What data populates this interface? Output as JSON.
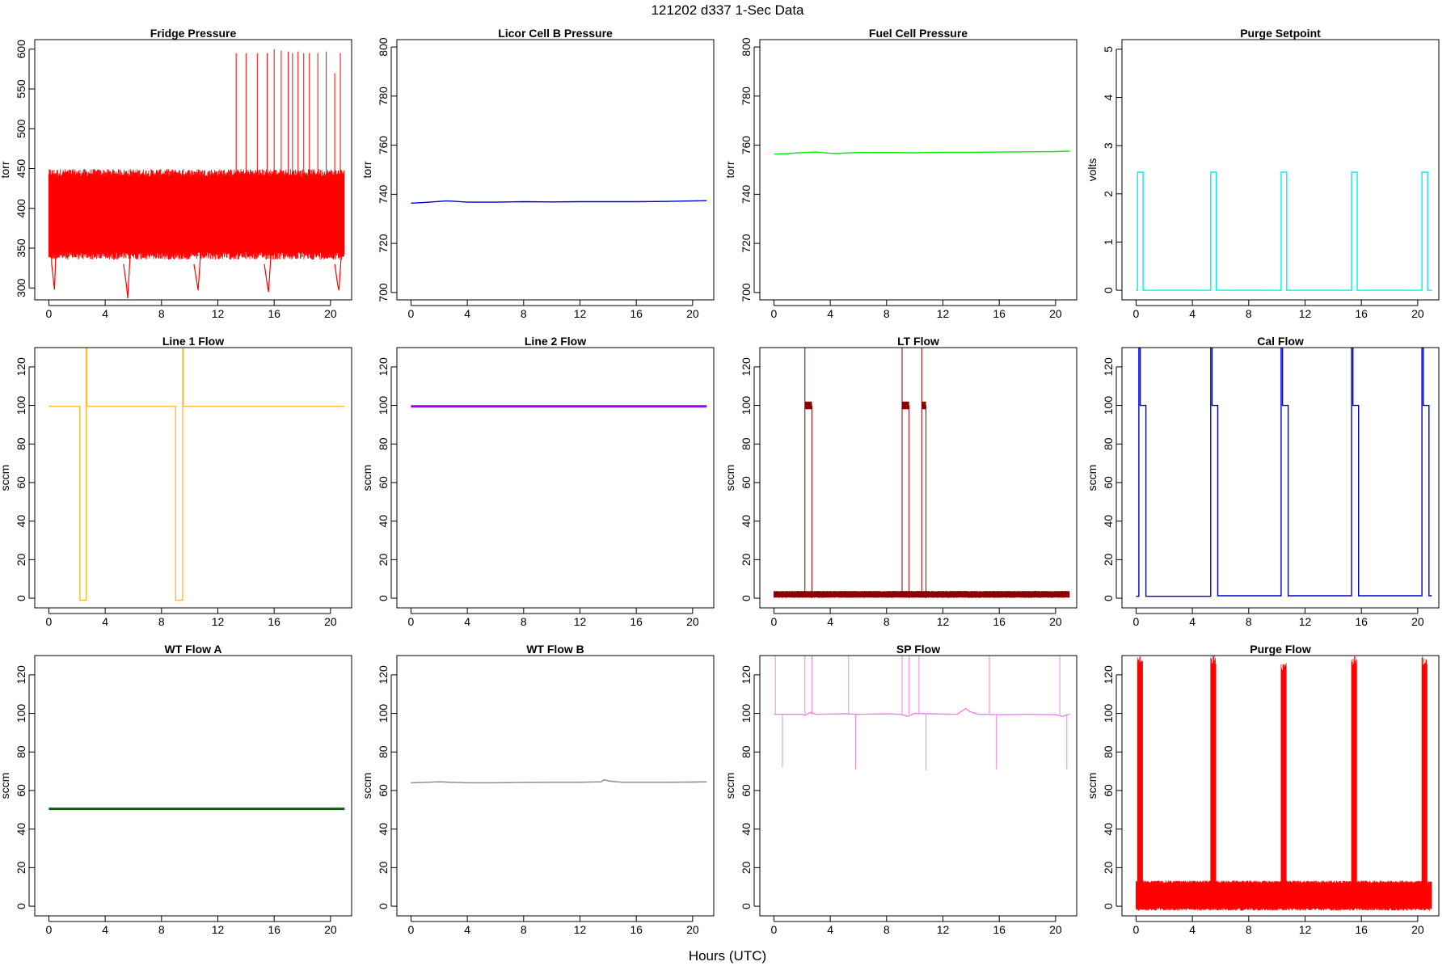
{
  "figure": {
    "title": "121202   d337   1-Sec Data",
    "xlabel": "Hours (UTC)"
  },
  "chart_data": [
    {
      "type": "line",
      "title": "Fridge Pressure",
      "ylabel": "torr",
      "color": "#ff0000",
      "xlim": [
        -1,
        21.5
      ],
      "ylim": [
        285,
        612
      ],
      "xticks": [
        0,
        4,
        8,
        12,
        16,
        20
      ],
      "yticks": [
        300,
        350,
        400,
        450,
        500,
        550,
        600
      ],
      "series": [
        {
          "band": {
            "x_range": [
              0,
              21
            ],
            "lower": 345,
            "upper": 440
          },
          "segments": [
            {
              "x": [
                0.1,
                0.2,
                0.4,
                0.6
              ],
              "y": [
                440,
                330,
                298,
                395
              ]
            },
            {
              "x": [
                5.3,
                5.5,
                5.6,
                5.8
              ],
              "y": [
                330,
                305,
                287,
                350
              ]
            },
            {
              "x": [
                10.3,
                10.5,
                10.6,
                10.8
              ],
              "y": [
                330,
                308,
                297,
                350
              ]
            },
            {
              "x": [
                15.3,
                15.5,
                15.6,
                15.8
              ],
              "y": [
                330,
                305,
                295,
                350
              ]
            },
            {
              "x": [
                20.3,
                20.5,
                20.6,
                20.8
              ],
              "y": [
                330,
                305,
                297,
                350
              ]
            }
          ],
          "spikes": [
            {
              "x": 13.3,
              "y": 595
            },
            {
              "x": 14.0,
              "y": 595
            },
            {
              "x": 14.8,
              "y": 595
            },
            {
              "x": 15.5,
              "y": 595
            },
            {
              "x": 16.0,
              "y": 600
            },
            {
              "x": 16.5,
              "y": 598
            },
            {
              "x": 17.0,
              "y": 597
            },
            {
              "x": 17.3,
              "y": 595
            },
            {
              "x": 17.7,
              "y": 597
            },
            {
              "x": 18.1,
              "y": 595
            },
            {
              "x": 18.5,
              "y": 595
            },
            {
              "x": 19.1,
              "y": 595
            },
            {
              "x": 19.7,
              "y": 597
            },
            {
              "x": 20.3,
              "y": 570
            },
            {
              "x": 20.7,
              "y": 595
            }
          ]
        }
      ]
    },
    {
      "type": "line",
      "title": "Licor Cell B Pressure",
      "ylabel": "torr",
      "color": "#0000cc",
      "xlim": [
        -1,
        21.5
      ],
      "ylim": [
        697,
        803
      ],
      "xticks": [
        0,
        4,
        8,
        12,
        16,
        20
      ],
      "yticks": [
        700,
        720,
        740,
        760,
        780,
        800
      ],
      "series": [
        {
          "x": [
            0,
            1,
            2,
            2.5,
            3,
            4,
            6,
            8,
            10,
            12,
            14,
            16,
            18,
            20,
            21
          ],
          "y": [
            736.4,
            736.7,
            737.1,
            737.3,
            737.2,
            736.8,
            736.8,
            737.0,
            736.9,
            737.0,
            737.0,
            737.0,
            737.1,
            737.3,
            737.4
          ]
        }
      ]
    },
    {
      "type": "line",
      "title": "Fuel Cell Pressure",
      "ylabel": "torr",
      "color": "#00ee00",
      "xlim": [
        -1,
        21.5
      ],
      "ylim": [
        697,
        803
      ],
      "xticks": [
        0,
        4,
        8,
        12,
        16,
        20
      ],
      "yticks": [
        700,
        720,
        740,
        760,
        780,
        800
      ],
      "series": [
        {
          "x": [
            0,
            1,
            2,
            3,
            4,
            4.5,
            5,
            6,
            8,
            10,
            12,
            14,
            16,
            18,
            20,
            21
          ],
          "y": [
            756.4,
            756.6,
            757.0,
            757.2,
            756.7,
            756.6,
            756.8,
            757.0,
            757.0,
            756.9,
            757.1,
            757.1,
            757.2,
            757.3,
            757.4,
            757.6
          ]
        }
      ]
    },
    {
      "type": "line",
      "title": "Purge Setpoint",
      "ylabel": "volts",
      "color": "#00eeee",
      "xlim": [
        -1,
        21.5
      ],
      "ylim": [
        -0.2,
        5.2
      ],
      "xticks": [
        0,
        4,
        8,
        12,
        16,
        20
      ],
      "yticks": [
        0,
        1,
        2,
        3,
        4,
        5
      ],
      "series": [
        {
          "x": [
            0,
            0.1,
            0.1,
            0.5,
            0.5,
            5.3,
            5.3,
            5.7,
            5.7,
            10.3,
            10.3,
            10.7,
            10.7,
            15.3,
            15.3,
            15.7,
            15.7,
            20.3,
            20.3,
            20.7,
            20.7,
            21
          ],
          "y": [
            0,
            0,
            2.45,
            2.45,
            0,
            0,
            2.45,
            2.45,
            0,
            0,
            2.45,
            2.45,
            0,
            0,
            2.45,
            2.45,
            0,
            0,
            2.45,
            2.45,
            0,
            0
          ]
        }
      ]
    },
    {
      "type": "line",
      "title": "Line 1 Flow",
      "ylabel": "sccm",
      "color": "#ffbb33",
      "xlim": [
        -1,
        21.5
      ],
      "ylim": [
        -5,
        130
      ],
      "xticks": [
        0,
        4,
        8,
        12,
        16,
        20
      ],
      "yticks": [
        0,
        20,
        40,
        60,
        80,
        100,
        120
      ],
      "series": [
        {
          "x": [
            0,
            2.2,
            2.2,
            2.65,
            2.65,
            2.7,
            2.7,
            9.0,
            9.0,
            9.5,
            9.5,
            9.55,
            9.55,
            21
          ],
          "y": [
            99.5,
            99.5,
            -1,
            -1,
            130,
            130,
            99.5,
            99.5,
            -1,
            -1,
            130,
            130,
            99.5,
            99.5
          ]
        }
      ]
    },
    {
      "type": "line",
      "title": "Line 2 Flow",
      "ylabel": "sccm",
      "color": "#9900ee",
      "xlim": [
        -1,
        21.5
      ],
      "ylim": [
        -5,
        130
      ],
      "xticks": [
        0,
        4,
        8,
        12,
        16,
        20
      ],
      "yticks": [
        0,
        20,
        40,
        60,
        80,
        100,
        120
      ],
      "series": [
        {
          "x": [
            0,
            21
          ],
          "y": [
            99.5,
            99.5
          ]
        }
      ]
    },
    {
      "type": "line",
      "title": "LT Flow",
      "ylabel": "sccm",
      "color": "#8b0000",
      "xlim": [
        -1,
        21.5
      ],
      "ylim": [
        -5,
        130
      ],
      "xticks": [
        0,
        4,
        8,
        12,
        16,
        20
      ],
      "yticks": [
        0,
        20,
        40,
        60,
        80,
        100,
        120
      ],
      "series": [
        {
          "band": {
            "x_range": [
              0,
              21
            ],
            "lower": 0.5,
            "upper": 3.5
          },
          "steps": [
            {
              "x_range": [
                2.2,
                2.7
              ],
              "value": 100
            },
            {
              "x_range": [
                9.1,
                9.6
              ],
              "value": 100
            },
            {
              "x_range": [
                10.5,
                10.8
              ],
              "value": 100
            }
          ],
          "spikes": [
            {
              "x": 2.2,
              "y": 130
            },
            {
              "x": 9.1,
              "y": 130
            },
            {
              "x": 10.5,
              "y": 130
            }
          ]
        }
      ]
    },
    {
      "type": "line",
      "title": "Cal Flow",
      "ylabel": "sccm",
      "color": "#0000cc",
      "xlim": [
        -1,
        21.5
      ],
      "ylim": [
        -5,
        130
      ],
      "xticks": [
        0,
        4,
        8,
        12,
        16,
        20
      ],
      "yticks": [
        0,
        20,
        40,
        60,
        80,
        100,
        120
      ],
      "series": [
        {
          "x": [
            0,
            0.2,
            0.2,
            0.3,
            0.3,
            0.7,
            0.7,
            5.3,
            5.3,
            5.4,
            5.4,
            5.8,
            5.8,
            10.3,
            10.3,
            10.4,
            10.4,
            10.8,
            10.8,
            15.3,
            15.3,
            15.4,
            15.4,
            15.8,
            15.8,
            20.3,
            20.3,
            20.4,
            20.4,
            20.8,
            20.8,
            21
          ],
          "y": [
            1,
            1,
            130,
            130,
            100,
            100,
            1,
            1,
            130,
            130,
            100,
            100,
            1.3,
            1.3,
            130,
            130,
            100,
            100,
            1.3,
            1.3,
            130,
            130,
            100,
            100,
            1.3,
            1.3,
            130,
            130,
            100,
            100,
            1.3,
            1.3
          ]
        }
      ]
    },
    {
      "type": "line",
      "title": "WT Flow A",
      "ylabel": "sccm",
      "color": "#006400",
      "xlim": [
        -1,
        21.5
      ],
      "ylim": [
        -5,
        130
      ],
      "xticks": [
        0,
        4,
        8,
        12,
        16,
        20
      ],
      "yticks": [
        0,
        20,
        40,
        60,
        80,
        100,
        120
      ],
      "series": [
        {
          "x": [
            0,
            21
          ],
          "y": [
            50.5,
            50.5
          ]
        }
      ]
    },
    {
      "type": "line",
      "title": "WT Flow B",
      "ylabel": "sccm",
      "color": "#888888",
      "xlim": [
        -1,
        21.5
      ],
      "ylim": [
        -5,
        130
      ],
      "xticks": [
        0,
        4,
        8,
        12,
        16,
        20
      ],
      "yticks": [
        0,
        20,
        40,
        60,
        80,
        100,
        120
      ],
      "series": [
        {
          "x": [
            0,
            2,
            4,
            6,
            8,
            10,
            12,
            13.5,
            13.7,
            14.2,
            15,
            16,
            18,
            20,
            21
          ],
          "y": [
            64,
            64.5,
            64,
            64,
            64.2,
            64.3,
            64.3,
            64.5,
            65.5,
            64.8,
            64.3,
            64.3,
            64.3,
            64.4,
            64.5
          ]
        }
      ]
    },
    {
      "type": "line",
      "title": "SP Flow",
      "ylabel": "sccm",
      "color": "#ee82ee",
      "xlim": [
        -1,
        21.5
      ],
      "ylim": [
        -5,
        130
      ],
      "xticks": [
        0,
        4,
        8,
        12,
        16,
        20
      ],
      "yticks": [
        0,
        20,
        40,
        60,
        80,
        100,
        120
      ],
      "series": [
        {
          "x": [
            0,
            2,
            2.2,
            2.6,
            3,
            5,
            6,
            8,
            9,
            9.5,
            10,
            11,
            13,
            13.6,
            13.9,
            14.5,
            15,
            16,
            18,
            20,
            20.5,
            21
          ],
          "y": [
            99.5,
            99.5,
            99,
            100.5,
            99.5,
            99.8,
            99.5,
            99.8,
            99.5,
            98.5,
            100,
            99.8,
            99.5,
            102.5,
            101,
            99.5,
            99.5,
            99.3,
            99.5,
            99.3,
            98.5,
            99.6
          ],
          "spikes": [
            {
              "x": 0.1,
              "y": 130
            },
            {
              "x": 0.6,
              "y": 72
            },
            {
              "x": 2.2,
              "y": 130
            },
            {
              "x": 2.7,
              "y": 130
            },
            {
              "x": 5.3,
              "y": 130
            },
            {
              "x": 5.8,
              "y": 71
            },
            {
              "x": 9.1,
              "y": 130
            },
            {
              "x": 9.6,
              "y": 130
            },
            {
              "x": 10.3,
              "y": 130
            },
            {
              "x": 10.8,
              "y": 70.5
            },
            {
              "x": 15.3,
              "y": 130
            },
            {
              "x": 15.8,
              "y": 71
            },
            {
              "x": 20.3,
              "y": 130
            },
            {
              "x": 20.8,
              "y": 71
            }
          ]
        }
      ]
    },
    {
      "type": "line",
      "title": "Purge Flow",
      "ylabel": "sccm",
      "color": "#ff0000",
      "xlim": [
        -1,
        21.5
      ],
      "ylim": [
        -5,
        130
      ],
      "xticks": [
        0,
        4,
        8,
        12,
        16,
        20
      ],
      "yticks": [
        0,
        20,
        40,
        60,
        80,
        100,
        120
      ],
      "series": [
        {
          "band": {
            "x_range": [
              0,
              21
            ],
            "lower": -1,
            "upper": 12
          },
          "bursts": [
            {
              "x_range": [
                0.1,
                0.5
              ],
              "peak": 130,
              "floor": 80
            },
            {
              "x_range": [
                5.3,
                5.7
              ],
              "peak": 130,
              "floor": 80
            },
            {
              "x_range": [
                10.3,
                10.7
              ],
              "peak": 127,
              "floor": 80
            },
            {
              "x_range": [
                15.3,
                15.7
              ],
              "peak": 130,
              "floor": 80
            },
            {
              "x_range": [
                20.3,
                20.7
              ],
              "peak": 130,
              "floor": 80
            }
          ]
        }
      ]
    }
  ]
}
